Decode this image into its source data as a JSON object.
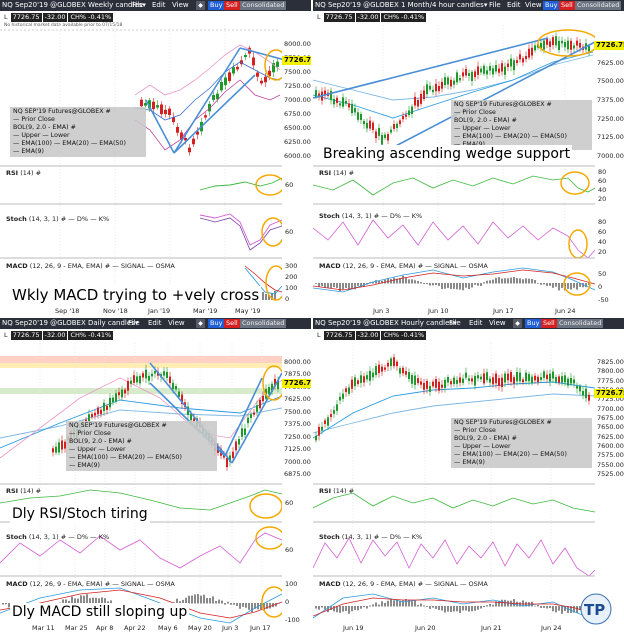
{
  "colors": {
    "title_bg": "#2a2f3a",
    "buy": "#1f5fd6",
    "sell": "#d42020",
    "bull": "#1d9a2b",
    "bear": "#d42020",
    "tag": "#f2ef00",
    "wedge": "#4a8fd6",
    "circle": "#f5a800",
    "ema100": "#7fb8e6",
    "ema20": "#3c6fd0",
    "ema50": "#2a9be0",
    "bol": "#e83a9a",
    "rsi": "#3cb83c",
    "stoch_d": "#d35fd3",
    "stoch_k": "#7a3fa8",
    "macd": "#2a9be0",
    "signal": "#d42020"
  },
  "common": {
    "menu_file": "File",
    "menu_edit": "Edit",
    "menu_view": "View",
    "buy": "Buy",
    "sell": "Sell",
    "consolidated": "Consolidated",
    "last_label": "L",
    "last": "7726.75",
    "change": "-32.00",
    "chg_pct": "CH% -0.41%",
    "legend_title": "NQ SEP'19 Futures@GLOBEX #",
    "legend_prior": "Prior Close",
    "legend_bol": "BOL(9, 2.0 - EMA) #",
    "legend_upper": "Upper",
    "legend_lower": "Lower",
    "legend_ema100": "EMA(100)",
    "legend_ema20": "EMA(20)",
    "legend_ema50": "EMA(50)",
    "legend_ema9": "EMA(9)",
    "rsi_label": "RSI",
    "rsi_params": "(14) #",
    "stoch_label": "Stoch",
    "stoch_params": "(14, 3, 1) #",
    "stoch_d": "D%",
    "stoch_k": "K%",
    "macd_label": "MACD",
    "macd_params": "(12, 26, 9 - EMA, EMA) #",
    "macd_signal": "SIGNAL",
    "macd_osma": "OSMA"
  },
  "panels": [
    {
      "id": "weekly",
      "title": "NQ Sep20'19 @GLOBEX",
      "interval": "Weekly candles",
      "note": "No historical market data available prior to 07/15/18",
      "annotation": "Wkly MACD trying to +vely cross",
      "y_ticks": [
        "8000.00",
        "7750.00",
        "7500.00",
        "7250.00",
        "7000.00",
        "6750.00",
        "6500.00",
        "6250.00",
        "6000.00"
      ],
      "rsi_ticks": [
        "60"
      ],
      "stoch_ticks": [
        "60"
      ],
      "macd_ticks": [
        "300",
        "200",
        "100",
        "0"
      ],
      "x_labels": [
        "Sep '18",
        "Nov '18",
        "Jan '19",
        "Mar '19",
        "May '19"
      ]
    },
    {
      "id": "month4h",
      "title": "NQ Sep20'19 @GLOBEX",
      "interval": "1 Month/4 hour candles",
      "annotation": "Breaking ascending wedge support",
      "y_ticks": [
        "7750.00",
        "7625.00",
        "7500.00",
        "7375.00",
        "7250.00",
        "7125.00",
        "7000.00"
      ],
      "rsi_ticks": [
        "80",
        "60",
        "40",
        "20"
      ],
      "stoch_ticks": [
        "80",
        "60",
        "40",
        "20"
      ],
      "macd_ticks": [
        "50",
        "0",
        "-50"
      ],
      "x_labels": [
        "Jun 3",
        "Jun 10",
        "Jun 17",
        "Jun 24"
      ]
    },
    {
      "id": "daily",
      "title": "NQ Sep20'19 @GLOBEX",
      "interval": "Daily candles",
      "annotation_rsi": "Dly RSI/Stoch tiring",
      "annotation_macd": "Dly MACD still sloping up",
      "y_ticks": [
        "8000.00",
        "7875.00",
        "7750.00",
        "7625.00",
        "7500.00",
        "7375.00",
        "7250.00",
        "7125.00",
        "7000.00",
        "6875.00"
      ],
      "rsi_ticks": [
        "60"
      ],
      "stoch_ticks": [
        "60"
      ],
      "macd_ticks": [
        "100",
        "0",
        "-100"
      ],
      "x_labels": [
        "Mar 11",
        "Mar 25",
        "Apr 8",
        "Apr 22",
        "May 6",
        "May 20",
        "Jun 3",
        "Jun 17"
      ]
    },
    {
      "id": "hourly",
      "title": "NQ Sep20'19 @GLOBEX",
      "interval": "Hourly candles",
      "y_ticks": [
        "7825.00",
        "7800.00",
        "7775.00",
        "7750.00",
        "7725.00",
        "7700.00",
        "7675.00",
        "7650.00",
        "7625.00",
        "7600.00",
        "7575.00",
        "7550.00",
        "7525.00"
      ],
      "x_labels": [
        "Jun 19",
        "Jun 20",
        "Jun 21",
        "Jun 24"
      ]
    }
  ]
}
